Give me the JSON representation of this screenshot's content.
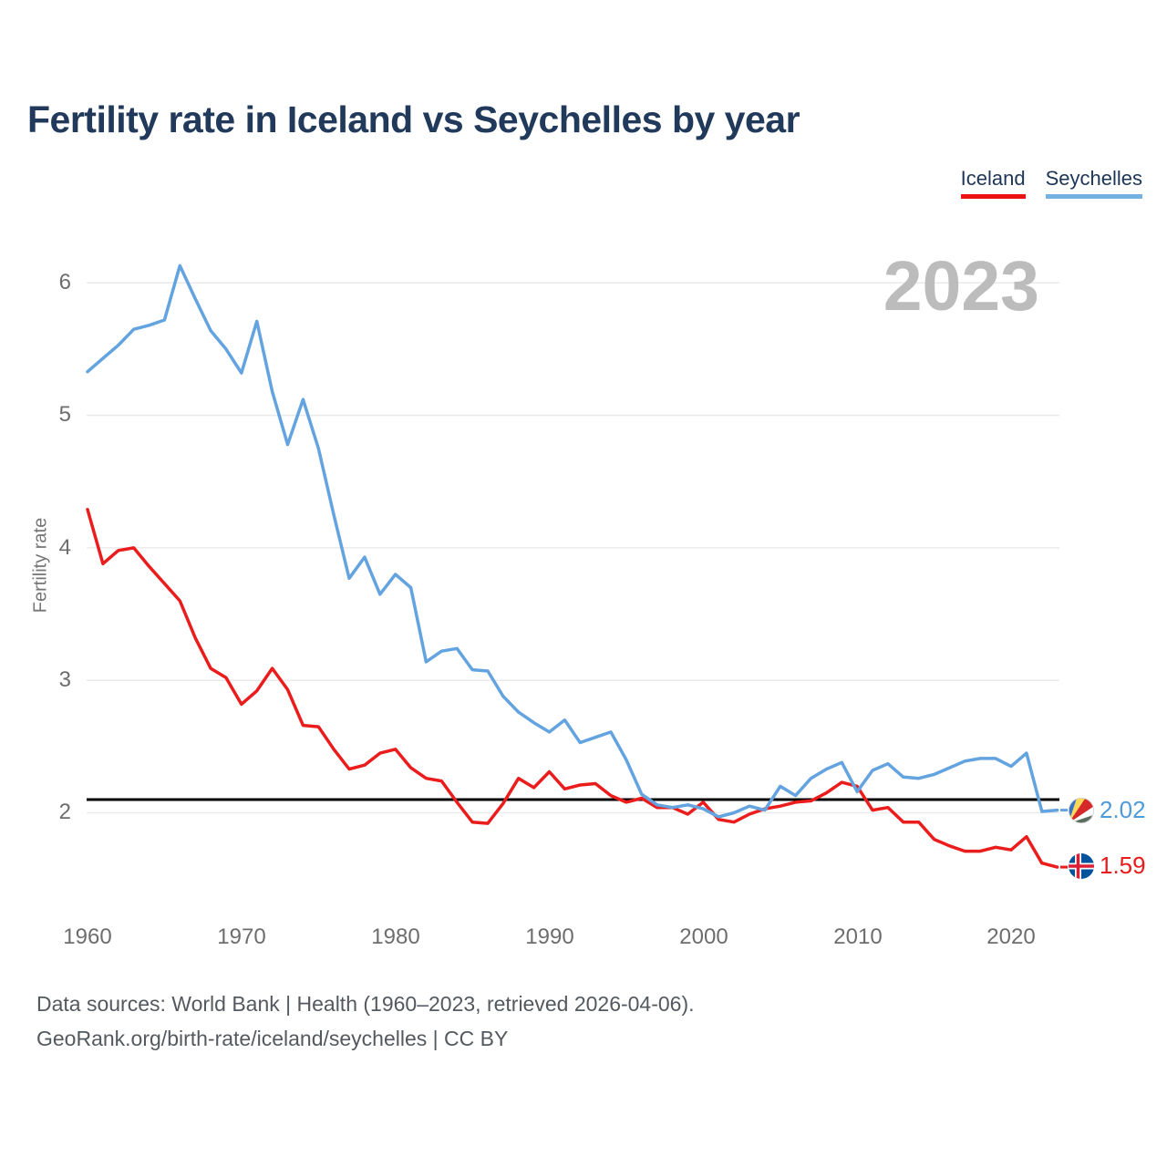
{
  "title": "Fertility rate in Iceland vs Seychelles by year",
  "watermark": "2023",
  "legend": {
    "iceland": "Iceland",
    "seychelles": "Seychelles"
  },
  "end_labels": {
    "seychelles": {
      "value": "2.02"
    },
    "iceland": {
      "value": "1.59"
    }
  },
  "footer": {
    "line1": "Data sources: World Bank | Health (1960–2023, retrieved 2026-04-06).",
    "line2": "GeoRank.org/birth-rate/iceland/seychelles | CC BY"
  },
  "colors": {
    "iceland": "#ea1c1c",
    "seychelles": "#63a3e0",
    "grid": "#eaeaea",
    "replacement_line": "#000000",
    "title": "#21395a",
    "watermark": "#bcbcbc"
  },
  "chart_data": {
    "type": "line",
    "title": "Fertility rate in Iceland vs Seychelles by year",
    "xlabel": "",
    "ylabel": "Fertility rate",
    "xlim": [
      1960,
      2023
    ],
    "ylim": [
      1.45,
      6.3
    ],
    "grid": "horizontal",
    "legend_position": "top-right",
    "replacement_line": 2.1,
    "x_ticks": [
      1960,
      1970,
      1980,
      1990,
      2000,
      2010,
      2020
    ],
    "y_ticks": [
      6,
      5,
      4,
      3,
      2
    ],
    "years": [
      1960,
      1961,
      1962,
      1963,
      1964,
      1965,
      1966,
      1967,
      1968,
      1969,
      1970,
      1971,
      1972,
      1973,
      1974,
      1975,
      1976,
      1977,
      1978,
      1979,
      1980,
      1981,
      1982,
      1983,
      1984,
      1985,
      1986,
      1987,
      1988,
      1989,
      1990,
      1991,
      1992,
      1993,
      1994,
      1995,
      1996,
      1997,
      1998,
      1999,
      2000,
      2001,
      2002,
      2003,
      2004,
      2005,
      2006,
      2007,
      2008,
      2009,
      2010,
      2011,
      2012,
      2013,
      2014,
      2015,
      2016,
      2017,
      2018,
      2019,
      2020,
      2021,
      2022,
      2023
    ],
    "series": [
      {
        "name": "Iceland",
        "color": "#ea1c1c",
        "values": [
          4.29,
          3.88,
          3.98,
          4.0,
          3.86,
          3.73,
          3.6,
          3.32,
          3.09,
          3.02,
          2.82,
          2.92,
          3.09,
          2.93,
          2.66,
          2.65,
          2.48,
          2.33,
          2.36,
          2.45,
          2.48,
          2.34,
          2.26,
          2.24,
          2.08,
          1.93,
          1.92,
          2.07,
          2.26,
          2.19,
          2.31,
          2.18,
          2.21,
          2.22,
          2.13,
          2.08,
          2.11,
          2.04,
          2.04,
          1.99,
          2.08,
          1.95,
          1.93,
          1.99,
          2.03,
          2.05,
          2.08,
          2.09,
          2.15,
          2.23,
          2.2,
          2.02,
          2.04,
          1.93,
          1.93,
          1.8,
          1.75,
          1.71,
          1.71,
          1.74,
          1.72,
          1.82,
          1.62,
          1.59
        ]
      },
      {
        "name": "Seychelles",
        "color": "#63a3e0",
        "values": [
          5.33,
          5.43,
          5.53,
          5.65,
          5.68,
          5.72,
          6.13,
          5.88,
          5.64,
          5.5,
          5.32,
          5.71,
          5.18,
          4.78,
          5.12,
          4.75,
          4.25,
          3.77,
          3.93,
          3.65,
          3.8,
          3.7,
          3.14,
          3.22,
          3.24,
          3.08,
          3.07,
          2.88,
          2.76,
          2.68,
          2.61,
          2.7,
          2.53,
          2.57,
          2.61,
          2.4,
          2.14,
          2.06,
          2.04,
          2.06,
          2.03,
          1.97,
          2.0,
          2.05,
          2.02,
          2.2,
          2.13,
          2.26,
          2.33,
          2.38,
          2.16,
          2.32,
          2.37,
          2.27,
          2.26,
          2.29,
          2.34,
          2.39,
          2.41,
          2.41,
          2.35,
          2.45,
          2.01,
          2.02
        ]
      }
    ]
  }
}
